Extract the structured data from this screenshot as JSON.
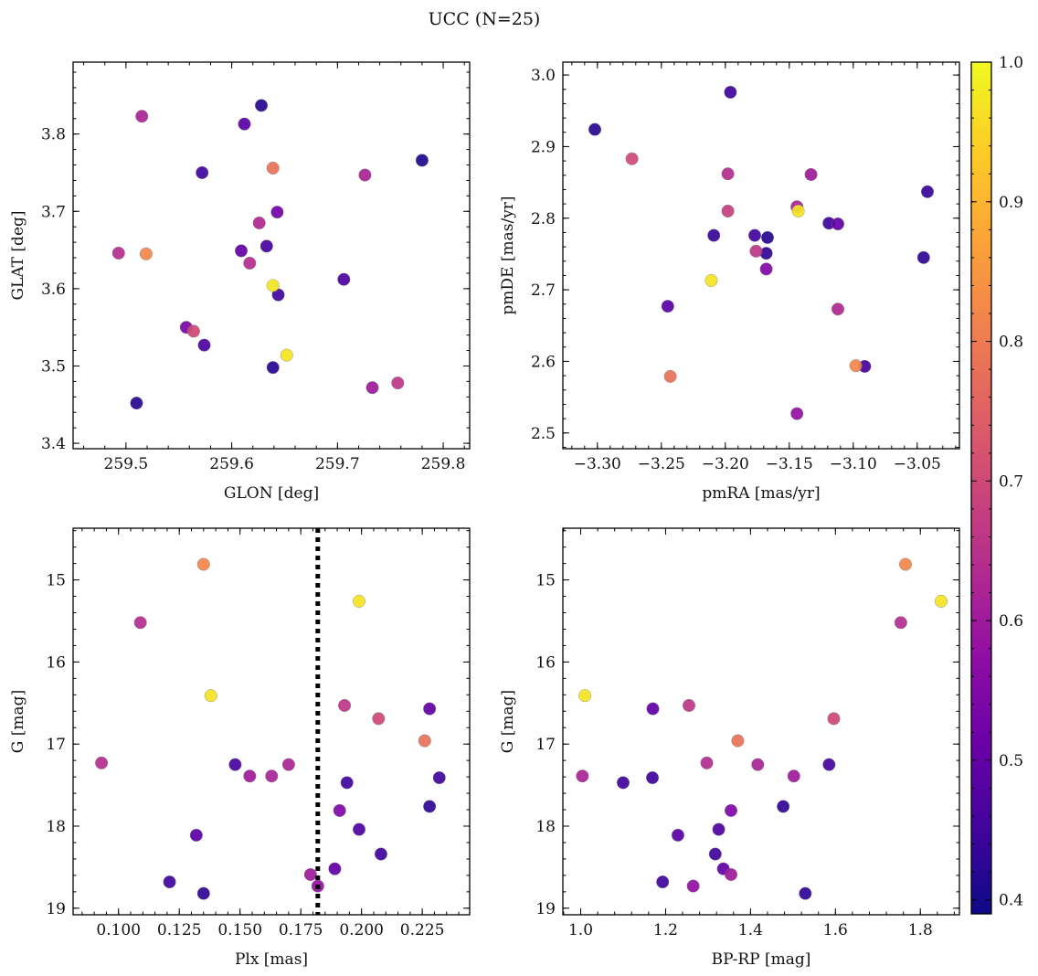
{
  "suptitle": "UCC (N=25)",
  "colormap": "plasma",
  "colorbar": {
    "range": [
      0.39,
      1.0
    ],
    "ticks": [
      "0.4",
      "0.5",
      "0.6",
      "0.7",
      "0.8",
      "0.9",
      "1.0"
    ],
    "tick_values": [
      0.4,
      0.5,
      0.6,
      0.7,
      0.8,
      0.9,
      1.0
    ]
  },
  "chart_data": [
    {
      "type": "scatter",
      "xlabel": "GLON [deg]",
      "ylabel": "GLAT [deg]",
      "xlim": [
        259.45,
        259.825
      ],
      "ylim": [
        3.393,
        3.893
      ],
      "xticks": [
        259.5,
        259.6,
        259.7,
        259.8
      ],
      "xticklabels": [
        "259.5",
        "259.6",
        "259.7",
        "259.8"
      ],
      "yticks": [
        3.4,
        3.5,
        3.6,
        3.7,
        3.8
      ],
      "yticklabels": [
        "3.4",
        "3.5",
        "3.6",
        "3.7",
        "3.8"
      ],
      "points": [
        {
          "x": 259.515,
          "y": 3.823,
          "c": 0.62
        },
        {
          "x": 259.628,
          "y": 3.837,
          "c": 0.42
        },
        {
          "x": 259.612,
          "y": 3.813,
          "c": 0.49
        },
        {
          "x": 259.78,
          "y": 3.766,
          "c": 0.41
        },
        {
          "x": 259.572,
          "y": 3.75,
          "c": 0.45
        },
        {
          "x": 259.639,
          "y": 3.756,
          "c": 0.78
        },
        {
          "x": 259.726,
          "y": 3.747,
          "c": 0.62
        },
        {
          "x": 259.643,
          "y": 3.699,
          "c": 0.52
        },
        {
          "x": 259.626,
          "y": 3.685,
          "c": 0.63
        },
        {
          "x": 259.493,
          "y": 3.646,
          "c": 0.64
        },
        {
          "x": 259.519,
          "y": 3.645,
          "c": 0.82
        },
        {
          "x": 259.609,
          "y": 3.649,
          "c": 0.5
        },
        {
          "x": 259.633,
          "y": 3.655,
          "c": 0.46
        },
        {
          "x": 259.617,
          "y": 3.633,
          "c": 0.64
        },
        {
          "x": 259.639,
          "y": 3.604,
          "c": 0.97
        },
        {
          "x": 259.706,
          "y": 3.612,
          "c": 0.47
        },
        {
          "x": 259.644,
          "y": 3.592,
          "c": 0.45
        },
        {
          "x": 259.557,
          "y": 3.55,
          "c": 0.54
        },
        {
          "x": 259.564,
          "y": 3.545,
          "c": 0.7
        },
        {
          "x": 259.574,
          "y": 3.527,
          "c": 0.47
        },
        {
          "x": 259.652,
          "y": 3.514,
          "c": 0.97
        },
        {
          "x": 259.639,
          "y": 3.498,
          "c": 0.42
        },
        {
          "x": 259.733,
          "y": 3.472,
          "c": 0.6
        },
        {
          "x": 259.757,
          "y": 3.478,
          "c": 0.66
        },
        {
          "x": 259.51,
          "y": 3.452,
          "c": 0.42
        }
      ]
    },
    {
      "type": "scatter",
      "xlabel": "pmRA [mas/yr]",
      "ylabel": "pmDE [mas/yr]",
      "xlim": [
        -3.327,
        -3.017
      ],
      "ylim": [
        2.478,
        3.018
      ],
      "xticks": [
        -3.3,
        -3.25,
        -3.2,
        -3.15,
        -3.1,
        -3.05
      ],
      "xticklabels": [
        "−3.30",
        "−3.25",
        "−3.20",
        "−3.15",
        "−3.10",
        "−3.05"
      ],
      "yticks": [
        2.5,
        2.6,
        2.7,
        2.8,
        2.9,
        3.0
      ],
      "yticklabels": [
        "2.5",
        "2.6",
        "2.7",
        "2.8",
        "2.9",
        "3.0"
      ],
      "points": [
        {
          "x": -3.196,
          "y": 2.976,
          "c": 0.45
        },
        {
          "x": -3.302,
          "y": 2.924,
          "c": 0.42
        },
        {
          "x": -3.273,
          "y": 2.883,
          "c": 0.7
        },
        {
          "x": -3.198,
          "y": 2.862,
          "c": 0.64
        },
        {
          "x": -3.133,
          "y": 2.861,
          "c": 0.6
        },
        {
          "x": -3.042,
          "y": 2.837,
          "c": 0.44
        },
        {
          "x": -3.144,
          "y": 2.816,
          "c": 0.62
        },
        {
          "x": -3.198,
          "y": 2.81,
          "c": 0.68
        },
        {
          "x": -3.143,
          "y": 2.81,
          "c": 0.97
        },
        {
          "x": -3.119,
          "y": 2.793,
          "c": 0.45
        },
        {
          "x": -3.112,
          "y": 2.792,
          "c": 0.5
        },
        {
          "x": -3.177,
          "y": 2.776,
          "c": 0.45
        },
        {
          "x": -3.209,
          "y": 2.776,
          "c": 0.44
        },
        {
          "x": -3.167,
          "y": 2.773,
          "c": 0.42
        },
        {
          "x": -3.176,
          "y": 2.754,
          "c": 0.66
        },
        {
          "x": -3.168,
          "y": 2.751,
          "c": 0.43
        },
        {
          "x": -3.045,
          "y": 2.745,
          "c": 0.43
        },
        {
          "x": -3.168,
          "y": 2.729,
          "c": 0.55
        },
        {
          "x": -3.211,
          "y": 2.713,
          "c": 0.97
        },
        {
          "x": -3.245,
          "y": 2.677,
          "c": 0.49
        },
        {
          "x": -3.112,
          "y": 2.673,
          "c": 0.63
        },
        {
          "x": -3.098,
          "y": 2.594,
          "c": 0.82
        },
        {
          "x": -3.091,
          "y": 2.593,
          "c": 0.46
        },
        {
          "x": -3.243,
          "y": 2.579,
          "c": 0.78
        },
        {
          "x": -3.144,
          "y": 2.527,
          "c": 0.58
        }
      ]
    },
    {
      "type": "scatter",
      "xlabel": "Plx [mas]",
      "ylabel": "G [mag]",
      "xlim": [
        0.0813,
        0.2445
      ],
      "ylim": [
        19.08,
        14.37
      ],
      "y_inverted": true,
      "xticks": [
        0.1,
        0.125,
        0.15,
        0.175,
        0.2,
        0.225
      ],
      "xticklabels": [
        "0.100",
        "0.125",
        "0.150",
        "0.175",
        "0.200",
        "0.225"
      ],
      "yticks": [
        15,
        16,
        17,
        18,
        19
      ],
      "yticklabels": [
        "15",
        "16",
        "17",
        "18",
        "19"
      ],
      "vline": 0.182,
      "points": [
        {
          "x": 0.135,
          "y": 14.81,
          "c": 0.82
        },
        {
          "x": 0.199,
          "y": 15.26,
          "c": 0.97
        },
        {
          "x": 0.109,
          "y": 15.52,
          "c": 0.64
        },
        {
          "x": 0.138,
          "y": 16.41,
          "c": 0.97
        },
        {
          "x": 0.193,
          "y": 16.53,
          "c": 0.66
        },
        {
          "x": 0.228,
          "y": 16.57,
          "c": 0.5
        },
        {
          "x": 0.207,
          "y": 16.69,
          "c": 0.7
        },
        {
          "x": 0.226,
          "y": 16.96,
          "c": 0.78
        },
        {
          "x": 0.093,
          "y": 17.23,
          "c": 0.64
        },
        {
          "x": 0.148,
          "y": 17.25,
          "c": 0.46
        },
        {
          "x": 0.17,
          "y": 17.25,
          "c": 0.62
        },
        {
          "x": 0.154,
          "y": 17.39,
          "c": 0.6
        },
        {
          "x": 0.163,
          "y": 17.39,
          "c": 0.62
        },
        {
          "x": 0.232,
          "y": 17.41,
          "c": 0.45
        },
        {
          "x": 0.194,
          "y": 17.47,
          "c": 0.45
        },
        {
          "x": 0.228,
          "y": 17.76,
          "c": 0.43
        },
        {
          "x": 0.191,
          "y": 17.81,
          "c": 0.55
        },
        {
          "x": 0.132,
          "y": 18.11,
          "c": 0.49
        },
        {
          "x": 0.199,
          "y": 18.04,
          "c": 0.47
        },
        {
          "x": 0.208,
          "y": 18.34,
          "c": 0.45
        },
        {
          "x": 0.189,
          "y": 18.52,
          "c": 0.5
        },
        {
          "x": 0.179,
          "y": 18.59,
          "c": 0.6
        },
        {
          "x": 0.121,
          "y": 18.68,
          "c": 0.45
        },
        {
          "x": 0.182,
          "y": 18.73,
          "c": 0.58
        },
        {
          "x": 0.135,
          "y": 18.82,
          "c": 0.43
        }
      ]
    },
    {
      "type": "scatter",
      "xlabel": "BP-RP [mag]",
      "ylabel": "G [mag]",
      "xlim": [
        0.958,
        1.892
      ],
      "ylim": [
        19.08,
        14.37
      ],
      "y_inverted": true,
      "xticks": [
        1.0,
        1.2,
        1.4,
        1.6,
        1.8
      ],
      "xticklabels": [
        "1.0",
        "1.2",
        "1.4",
        "1.6",
        "1.8"
      ],
      "yticks": [
        15,
        16,
        17,
        18,
        19
      ],
      "yticklabels": [
        "15",
        "16",
        "17",
        "18",
        "19"
      ],
      "points": [
        {
          "x": 1.765,
          "y": 14.81,
          "c": 0.82
        },
        {
          "x": 1.849,
          "y": 15.26,
          "c": 0.97
        },
        {
          "x": 1.754,
          "y": 15.52,
          "c": 0.64
        },
        {
          "x": 1.01,
          "y": 16.41,
          "c": 0.97
        },
        {
          "x": 1.255,
          "y": 16.53,
          "c": 0.66
        },
        {
          "x": 1.17,
          "y": 16.57,
          "c": 0.5
        },
        {
          "x": 1.596,
          "y": 16.69,
          "c": 0.7
        },
        {
          "x": 1.37,
          "y": 16.96,
          "c": 0.78
        },
        {
          "x": 1.297,
          "y": 17.23,
          "c": 0.64
        },
        {
          "x": 1.585,
          "y": 17.25,
          "c": 0.46
        },
        {
          "x": 1.417,
          "y": 17.25,
          "c": 0.62
        },
        {
          "x": 1.004,
          "y": 17.39,
          "c": 0.62
        },
        {
          "x": 1.502,
          "y": 17.39,
          "c": 0.6
        },
        {
          "x": 1.169,
          "y": 17.41,
          "c": 0.45
        },
        {
          "x": 1.1,
          "y": 17.47,
          "c": 0.45
        },
        {
          "x": 1.477,
          "y": 17.76,
          "c": 0.43
        },
        {
          "x": 1.354,
          "y": 17.81,
          "c": 0.55
        },
        {
          "x": 1.229,
          "y": 18.11,
          "c": 0.49
        },
        {
          "x": 1.325,
          "y": 18.04,
          "c": 0.47
        },
        {
          "x": 1.317,
          "y": 18.34,
          "c": 0.45
        },
        {
          "x": 1.336,
          "y": 18.52,
          "c": 0.5
        },
        {
          "x": 1.354,
          "y": 18.59,
          "c": 0.6
        },
        {
          "x": 1.193,
          "y": 18.68,
          "c": 0.45
        },
        {
          "x": 1.265,
          "y": 18.73,
          "c": 0.58
        },
        {
          "x": 1.529,
          "y": 18.82,
          "c": 0.43
        }
      ]
    }
  ]
}
